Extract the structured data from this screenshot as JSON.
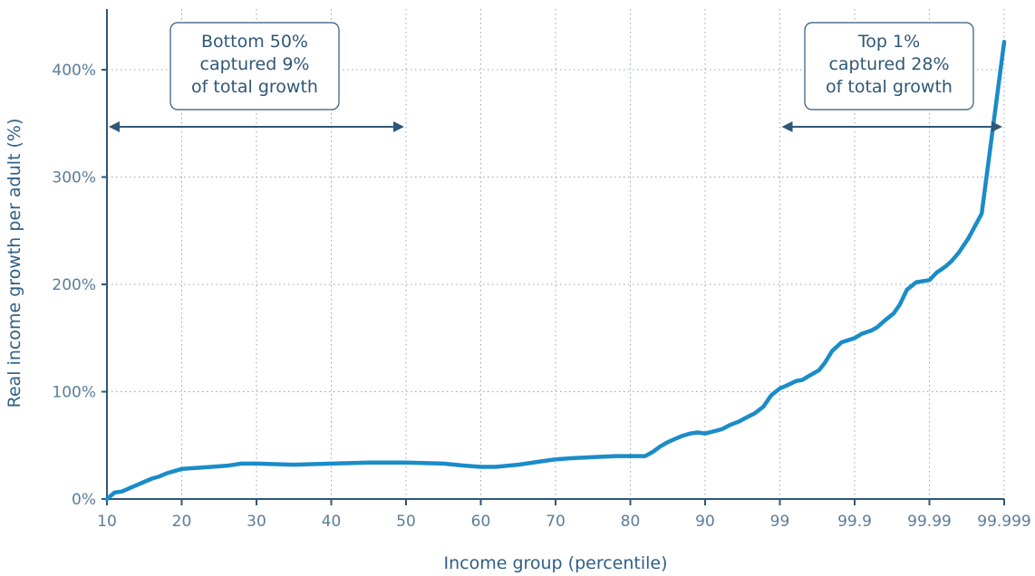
{
  "chart_data": {
    "type": "line",
    "xlabel": "Income group (percentile)",
    "ylabel": "Real income growth per adult (%)",
    "ylim": [
      0,
      440
    ],
    "y_ticks": [
      {
        "value": 0,
        "label": "0%"
      },
      {
        "value": 100,
        "label": "100%"
      },
      {
        "value": 200,
        "label": "200%"
      },
      {
        "value": 300,
        "label": "300%"
      },
      {
        "value": 400,
        "label": "400%"
      }
    ],
    "x_ticks": [
      "10",
      "20",
      "30",
      "40",
      "50",
      "60",
      "70",
      "80",
      "90",
      "99",
      "99.9",
      "99.99",
      "99.999"
    ],
    "grid": true,
    "series": [
      {
        "color": "#1a8cc8",
        "points": [
          [
            "10",
            0
          ],
          [
            "11",
            6
          ],
          [
            "12",
            7
          ],
          [
            "13",
            10
          ],
          [
            "14",
            13
          ],
          [
            "15",
            16
          ],
          [
            "16",
            19
          ],
          [
            "17",
            21
          ],
          [
            "18",
            24
          ],
          [
            "19",
            26
          ],
          [
            "20",
            28
          ],
          [
            "22",
            29
          ],
          [
            "24",
            30
          ],
          [
            "26",
            31
          ],
          [
            "28",
            33
          ],
          [
            "30",
            33
          ],
          [
            "35",
            32
          ],
          [
            "40",
            33
          ],
          [
            "45",
            34
          ],
          [
            "50",
            34
          ],
          [
            "55",
            33
          ],
          [
            "58",
            31
          ],
          [
            "60",
            30
          ],
          [
            "62",
            30
          ],
          [
            "65",
            32
          ],
          [
            "68",
            35
          ],
          [
            "70",
            37
          ],
          [
            "72",
            38
          ],
          [
            "75",
            39
          ],
          [
            "78",
            40
          ],
          [
            "80",
            40
          ],
          [
            "82",
            40
          ],
          [
            "83",
            44
          ],
          [
            "84",
            49
          ],
          [
            "85",
            53
          ],
          [
            "86",
            56
          ],
          [
            "87",
            59
          ],
          [
            "88",
            61
          ],
          [
            "89",
            62
          ],
          [
            "90",
            61
          ],
          [
            "92",
            65
          ],
          [
            "93",
            69
          ],
          [
            "94",
            72
          ],
          [
            "95",
            76
          ],
          [
            "96",
            80
          ],
          [
            "97",
            86
          ],
          [
            "98",
            97
          ],
          [
            "99",
            103
          ],
          [
            "99.2",
            106
          ],
          [
            "99.4",
            110
          ],
          [
            "99.5",
            111
          ],
          [
            "99.6",
            115
          ],
          [
            "99.7",
            120
          ],
          [
            "99.75",
            127
          ],
          [
            "99.8",
            138
          ],
          [
            "99.85",
            146
          ],
          [
            "99.9",
            150
          ],
          [
            "99.92",
            154
          ],
          [
            "99.94",
            157
          ],
          [
            "99.95",
            160
          ],
          [
            "99.96",
            166
          ],
          [
            "99.97",
            173
          ],
          [
            "99.975",
            181
          ],
          [
            "99.98",
            195
          ],
          [
            "99.985",
            202
          ],
          [
            "99.99",
            204
          ],
          [
            "99.992",
            211
          ],
          [
            "99.994",
            217
          ],
          [
            "99.995",
            222
          ],
          [
            "99.996",
            230
          ],
          [
            "99.997",
            243
          ],
          [
            "99.998",
            266
          ],
          [
            "99.999",
            426
          ]
        ]
      }
    ],
    "annotations": [
      {
        "lines": [
          "Bottom 50%",
          "captured 9%",
          "of total growth"
        ],
        "range": [
          "10",
          "50"
        ]
      },
      {
        "lines": [
          "Top 1%",
          "captured 28%",
          "of total growth"
        ],
        "range": [
          "99",
          "99.999"
        ]
      }
    ]
  }
}
